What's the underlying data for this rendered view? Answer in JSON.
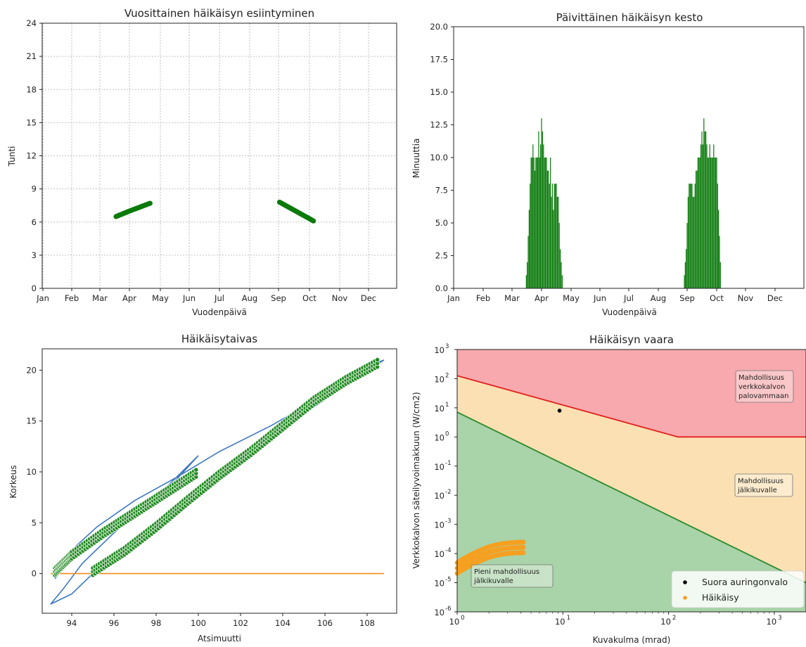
{
  "chart_data": [
    {
      "type": "scatter",
      "title": "Vuosittainen häikäisyn esiintyminen",
      "xlabel": "Vuodenpäivä",
      "ylabel": "Tunti",
      "month_labels": [
        "Jan",
        "Feb",
        "Mar",
        "Apr",
        "May",
        "Jun",
        "Jul",
        "Aug",
        "Sep",
        "Oct",
        "Nov",
        "Dec"
      ],
      "ylim": [
        0,
        24
      ],
      "yticks": [
        "0",
        "3",
        "6",
        "9",
        "12",
        "15",
        "18",
        "21",
        "24"
      ],
      "grid": true,
      "point_color": "#0a7a0a",
      "series": [
        {
          "x_day_start": 76,
          "x_day_end": 110,
          "y_start": 6.5,
          "y_end": 7.7
        },
        {
          "x_day_start": 244,
          "x_day_end": 277,
          "y_start": 7.8,
          "y_end": 6.1
        }
      ]
    },
    {
      "type": "bar",
      "title": "Päivittäinen häikäisyn kesto",
      "xlabel": "Vuodenpäivä",
      "ylabel": "Minuuttia",
      "month_labels": [
        "Jan",
        "Feb",
        "Mar",
        "Apr",
        "May",
        "Jun",
        "Jul",
        "Aug",
        "Sep",
        "Oct",
        "Nov",
        "Dec"
      ],
      "ylim": [
        0,
        20
      ],
      "yticks": [
        "0.0",
        "2.5",
        "5.0",
        "7.5",
        "10.0",
        "12.5",
        "15.0",
        "17.5",
        "20.0"
      ],
      "bar_color": "#0a7a0a",
      "days_spring": [
        74,
        75,
        76,
        77,
        78,
        79,
        80,
        81,
        82,
        83,
        84,
        85,
        86,
        87,
        88,
        89,
        90,
        91,
        92,
        93,
        94,
        95,
        96,
        97,
        98,
        99,
        100,
        101,
        102,
        103,
        104,
        105,
        106,
        107,
        108,
        109,
        110,
        111
      ],
      "values_spring": [
        1,
        2,
        4,
        6,
        8,
        10,
        10,
        11,
        10,
        9,
        10,
        10,
        10,
        12,
        10,
        11,
        13,
        12,
        11,
        10,
        10,
        10,
        9,
        9,
        8,
        10,
        7,
        8,
        6,
        8,
        8,
        8,
        7,
        7,
        5,
        3,
        2,
        1
      ],
      "days_autumn": [
        240,
        241,
        242,
        243,
        244,
        245,
        246,
        247,
        248,
        249,
        250,
        251,
        252,
        253,
        254,
        255,
        256,
        257,
        258,
        259,
        260,
        261,
        262,
        263,
        264,
        265,
        266,
        267,
        268,
        269,
        270,
        271,
        272,
        273,
        274,
        275,
        276,
        277
      ],
      "values_autumn": [
        1,
        2,
        3,
        5,
        7,
        8,
        8,
        8,
        8,
        7,
        7,
        8,
        9,
        9,
        10,
        10,
        10,
        11,
        12,
        11,
        13,
        12,
        12,
        11,
        10,
        10,
        11,
        10,
        10,
        10,
        11,
        10,
        10,
        10,
        8,
        6,
        4,
        2
      ]
    },
    {
      "type": "line",
      "title": "Häikäisytaivas",
      "xlabel": "Atsimuutti",
      "ylabel": "Korkeus",
      "xlim": [
        92.6,
        109.4
      ],
      "ylim": [
        -3.9,
        22.1
      ],
      "xticks": [
        "94",
        "96",
        "98",
        "100",
        "102",
        "104",
        "106",
        "108"
      ],
      "yticks": [
        "0",
        "5",
        "10",
        "15",
        "20"
      ],
      "colors": {
        "sky_outline": "#3c78c0",
        "horizon": "#f08a1c",
        "glare_points": "#228b22"
      },
      "horizon": {
        "x": [
          93.0,
          108.8
        ],
        "y": [
          0,
          0
        ]
      },
      "sky_outline": {
        "x": [
          93.2,
          93.8,
          95.0,
          96.5,
          98.5,
          100.0,
          98.0,
          96.0,
          94.5,
          93.6,
          93.0,
          94.0,
          95.0,
          96.5,
          98.0,
          99.5,
          101.0,
          102.5,
          104.5,
          106.5,
          108.3,
          108.8,
          108.0,
          106.0,
          103.5,
          101.0,
          99.0,
          97.0,
          95.2,
          94.2,
          93.2
        ],
        "y": [
          -0.5,
          1.0,
          3.0,
          5.0,
          8.2,
          11.6,
          7.5,
          4.0,
          1.0,
          -1.5,
          -3.0,
          -2.0,
          0.0,
          1.8,
          4.5,
          7.2,
          9.8,
          12.0,
          15.0,
          17.8,
          20.6,
          21.0,
          20.0,
          17.6,
          14.6,
          12.0,
          9.5,
          7.2,
          4.6,
          2.7,
          -0.5
        ]
      },
      "glare_band_upper": {
        "x": [
          93.2,
          94.0,
          95.5,
          97.0,
          98.5,
          100.0
        ],
        "y": [
          0.2,
          1.8,
          4.0,
          6.0,
          8.0,
          10.0
        ]
      },
      "glare_band_lower": {
        "x": [
          95.0,
          96.5,
          98.0,
          99.5,
          101.0,
          102.5,
          104.0,
          105.5,
          107.0,
          108.6
        ],
        "y": [
          0.2,
          2.2,
          4.6,
          7.2,
          9.7,
          12.0,
          14.5,
          17.0,
          19.0,
          20.8
        ]
      }
    },
    {
      "type": "scatter",
      "title": "Häikäisyn vaara",
      "xlabel": "Kuvakulma (mrad)",
      "ylabel": "Verkkokalvon säteilyvoimakkuun (W/cm2)",
      "x_scale": "log",
      "y_scale": "log",
      "xlim_exp": [
        0,
        3.3
      ],
      "ylim_exp": [
        -6,
        3
      ],
      "xtick_exponents": [
        0,
        1,
        2,
        3
      ],
      "ytick_exponents": [
        -6,
        -5,
        -4,
        -3,
        -2,
        -1,
        0,
        1,
        2,
        3
      ],
      "tick_base": "10",
      "regions": [
        {
          "label": "Mahdollisuus verkkokalvon palovammaan",
          "lines": [
            "Mahdollisuus",
            "verkkokalvon",
            "palovammaan"
          ],
          "color": "#f7a9ad"
        },
        {
          "label": "Mahdollisuus jälkikuvalle",
          "lines": [
            "Mahdollisuus",
            "jälkikuvalle"
          ],
          "color": "#fbe0b3"
        },
        {
          "label": "Pieni mahdollisuus jälkikuvalle",
          "lines": [
            "Pieni mahdollisuus",
            "jälkikuvalle"
          ],
          "color": "#a9d3a8"
        }
      ],
      "boundary_red": {
        "x_exp": [
          0,
          2.09,
          3.3
        ],
        "y_exp": [
          2.1,
          0.0,
          0.0
        ],
        "color": "#e0201e"
      },
      "boundary_green": {
        "x_exp": [
          0,
          3.3
        ],
        "y_exp": [
          0.85,
          -5.0
        ],
        "color": "#2a8a2a"
      },
      "direct_sun": {
        "x": 9.3,
        "y": 8.0,
        "label": "Suora auringonvalo",
        "color": "#000000"
      },
      "glare": {
        "label": "Häikäisy",
        "color": "#f5a020",
        "x_exp": [
          0.0,
          0.05,
          0.1,
          0.15,
          0.2,
          0.25,
          0.3,
          0.35,
          0.4,
          0.45,
          0.5,
          0.55,
          0.6,
          0.63
        ],
        "y_exp": [
          -4.5,
          -4.38,
          -4.28,
          -4.18,
          -4.1,
          -4.02,
          -3.95,
          -3.9,
          -3.86,
          -3.83,
          -3.81,
          -3.8,
          -3.79,
          -3.79
        ]
      }
    }
  ]
}
